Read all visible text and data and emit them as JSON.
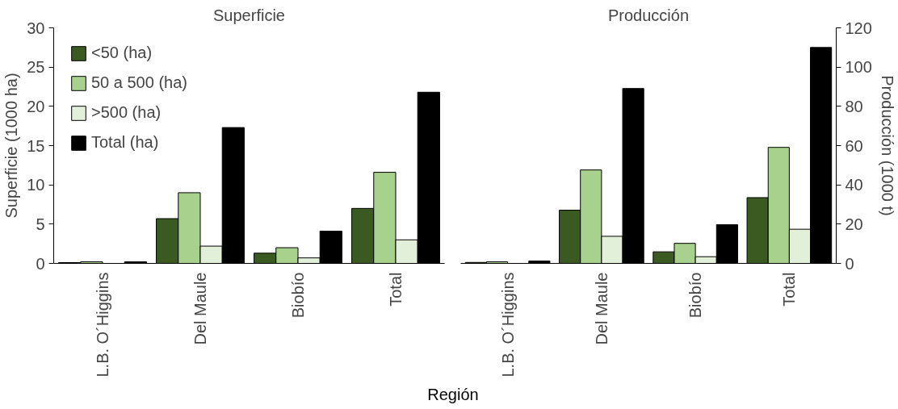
{
  "chart_data": [
    {
      "type": "bar",
      "title": "Superficie",
      "ylabel": "Superficie (1000 ha)",
      "xlabel": "Región",
      "categories": [
        "L.B. O´Higgins",
        "Del Maule",
        "Biobío",
        "Total"
      ],
      "ylim": [
        0,
        30
      ],
      "yticks": [
        0,
        5,
        10,
        15,
        20,
        25,
        30
      ],
      "legend": "top left",
      "grid": false,
      "series": [
        {
          "name": "<50 (ha)",
          "color": "#3a5a22",
          "values": [
            0.1,
            5.7,
            1.3,
            7.0
          ]
        },
        {
          "name": "50 a 500 (ha)",
          "color": "#a8d18d",
          "values": [
            0.2,
            9.0,
            2.0,
            11.6
          ]
        },
        {
          "name": ">500 (ha)",
          "color": "#e2efd9",
          "values": [
            null,
            2.2,
            0.7,
            3.0
          ]
        },
        {
          "name": "Total (ha)",
          "color": "#000000",
          "values": [
            0.2,
            17.3,
            4.1,
            21.8
          ]
        }
      ]
    },
    {
      "type": "bar",
      "title": "Producción",
      "y2label": "Producción (1000 t)",
      "categories": [
        "L.B. O´Higgins",
        "Del Maule",
        "Biobío",
        "Total"
      ],
      "y2lim": [
        0,
        120
      ],
      "y2ticks": [
        0,
        20,
        40,
        60,
        80,
        100,
        120
      ],
      "grid": false,
      "series": [
        {
          "color": "#3a5a22",
          "axis": "y2",
          "values": [
            0.5,
            27.1,
            5.9,
            33.5
          ]
        },
        {
          "color": "#a8d18d",
          "axis": "y2",
          "values": [
            0.8,
            47.6,
            10.2,
            59.1
          ]
        },
        {
          "color": "#e2efd9",
          "axis": "y2",
          "values": [
            null,
            13.8,
            3.4,
            17.4
          ]
        },
        {
          "color": "#000000",
          "axis": "y2",
          "values": [
            1.2,
            89.1,
            19.7,
            110
          ]
        }
      ]
    }
  ]
}
